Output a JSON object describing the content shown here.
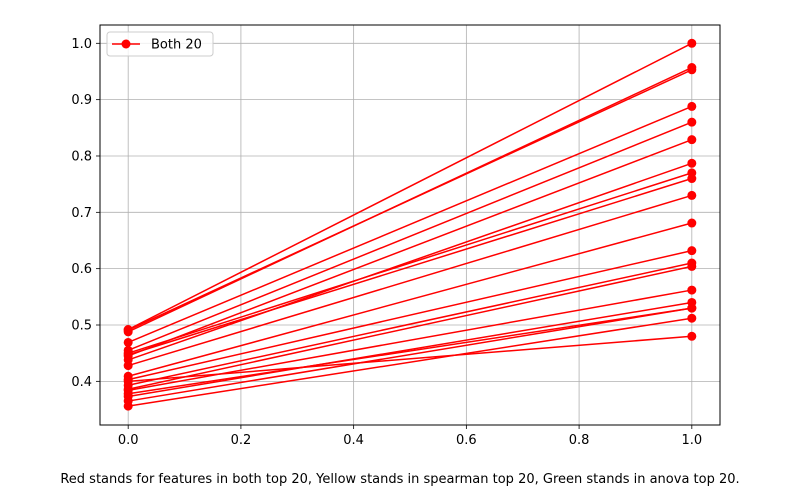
{
  "chart_data": {
    "type": "line",
    "x": [
      0.0,
      1.0
    ],
    "xlim": [
      -0.05,
      1.05
    ],
    "ylim": [
      0.3225,
      1.0325
    ],
    "xticks": [
      "0.0",
      "0.2",
      "0.4",
      "0.6",
      "0.8",
      "1.0"
    ],
    "yticks": [
      "0.4",
      "0.5",
      "0.6",
      "0.7",
      "0.8",
      "0.9",
      "1.0"
    ],
    "grid": true,
    "legend": {
      "placement": "top-left",
      "entries": [
        "Both 20"
      ]
    },
    "color": "#ff0000",
    "lines": [
      [
        0.492,
        1.0
      ],
      [
        0.488,
        0.957
      ],
      [
        0.491,
        0.953
      ],
      [
        0.469,
        0.888
      ],
      [
        0.455,
        0.86
      ],
      [
        0.445,
        0.829
      ],
      [
        0.438,
        0.787
      ],
      [
        0.45,
        0.77
      ],
      [
        0.447,
        0.76
      ],
      [
        0.428,
        0.73
      ],
      [
        0.409,
        0.681
      ],
      [
        0.403,
        0.632
      ],
      [
        0.393,
        0.61
      ],
      [
        0.386,
        0.604
      ],
      [
        0.384,
        0.562
      ],
      [
        0.373,
        0.54
      ],
      [
        0.378,
        0.53
      ],
      [
        0.365,
        0.53
      ],
      [
        0.356,
        0.512
      ],
      [
        0.4,
        0.48
      ]
    ]
  },
  "caption": "Red stands for features in both top 20, Yellow stands in spearman top 20, Green stands in anova top 20."
}
